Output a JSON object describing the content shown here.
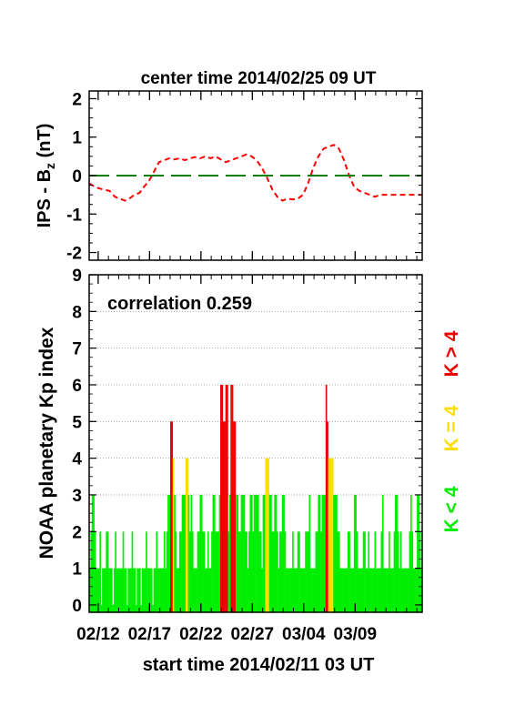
{
  "chart_data": [
    {
      "type": "line",
      "title": "center time 2014/02/25 09 UT",
      "ylabel": "IPS - B",
      "ylabel_sub": "z",
      "ylabel_unit": " (nT)",
      "ylim": [
        -2.2,
        2.2
      ],
      "yticks": [
        2,
        1,
        0,
        -1,
        -2
      ],
      "xrange_days": [
        0,
        32.4
      ],
      "series": [
        {
          "color": "#ff0000",
          "x": [
            0,
            0.6,
            1.2,
            2,
            2.5,
            3,
            3.5,
            3.9,
            4.4,
            4.9,
            5.3,
            5.8,
            6.3,
            6.8,
            7.3,
            7.8,
            8.3,
            8.8,
            9.3,
            9.8,
            10.3,
            10.8,
            11.3,
            11.8,
            12.3,
            12.8,
            13.3,
            13.8,
            14.3,
            14.8,
            15.3,
            15.8,
            16.3,
            16.8,
            17.3,
            17.8,
            18.3,
            18.8,
            19.3,
            19.8,
            20.3,
            20.8,
            21.3,
            21.8,
            22.3,
            22.8,
            23.3,
            23.8,
            24.3,
            24.8,
            25.3,
            25.8,
            26.3,
            26.8,
            27.3,
            27.8,
            28.3,
            28.8,
            29.3,
            29.8,
            30.3,
            30.8,
            31.3,
            31.8,
            32.3
          ],
          "y": [
            -0.2,
            -0.3,
            -0.35,
            -0.4,
            -0.55,
            -0.6,
            -0.65,
            -0.6,
            -0.5,
            -0.45,
            -0.3,
            -0.15,
            0.1,
            0.35,
            0.4,
            0.45,
            0.42,
            0.45,
            0.4,
            0.45,
            0.48,
            0.45,
            0.5,
            0.45,
            0.5,
            0.42,
            0.35,
            0.4,
            0.45,
            0.5,
            0.55,
            0.5,
            0.4,
            0.2,
            -0.05,
            -0.35,
            -0.55,
            -0.65,
            -0.6,
            -0.62,
            -0.6,
            -0.5,
            -0.2,
            0.2,
            0.5,
            0.7,
            0.75,
            0.8,
            0.7,
            0.4,
            0.0,
            -0.3,
            -0.4,
            -0.45,
            -0.5,
            -0.55,
            -0.5,
            -0.5,
            -0.5,
            -0.5,
            -0.5,
            -0.5,
            -0.5,
            -0.5,
            -0.5
          ]
        },
        {
          "color": "#008000",
          "x": [
            0,
            32.4
          ],
          "y": [
            0,
            0
          ]
        }
      ]
    },
    {
      "type": "bar",
      "annotation": "correlation 0.259",
      "ylabel": "NOAA planetary Kp index",
      "xlabel": "start time 2014/02/11 03 UT",
      "ylim": [
        -0.2,
        9
      ],
      "yticks": [
        0,
        1,
        2,
        3,
        4,
        5,
        6,
        7,
        8,
        9
      ],
      "categories": [
        "02/12",
        "02/17",
        "02/22",
        "02/27",
        "03/04",
        "03/09"
      ],
      "category_day_offsets": [
        0.875,
        5.875,
        10.875,
        15.875,
        20.875,
        25.875
      ],
      "xrange_days": [
        0,
        32.4
      ],
      "bar_days_step": 0.125,
      "legend": [
        {
          "label": "K < 4",
          "color": "#00ee00"
        },
        {
          "label": "K = 4",
          "color": "#ffdd00"
        },
        {
          "label": "K > 4",
          "color": "#ee0000"
        }
      ],
      "kp_values": [
        1,
        2,
        3,
        3,
        2,
        1,
        1,
        1,
        2,
        0,
        1,
        1,
        1,
        2,
        2,
        1,
        1,
        1,
        0,
        1,
        2,
        1,
        1,
        1,
        1,
        1,
        2,
        1,
        1,
        0,
        1,
        1,
        1,
        2,
        1,
        1,
        0,
        1,
        1,
        1,
        0,
        1,
        1,
        1,
        2,
        1,
        1,
        1,
        1,
        0,
        1,
        1,
        2,
        1,
        1,
        1,
        1,
        1,
        2,
        1,
        2,
        3,
        3,
        5,
        5,
        4,
        3,
        2,
        1,
        1,
        2,
        2,
        3,
        3,
        3,
        4,
        4,
        3,
        2,
        3,
        2,
        1,
        1,
        1,
        2,
        2,
        3,
        3,
        2,
        2,
        1,
        1,
        2,
        1,
        1,
        2,
        3,
        3,
        2,
        2,
        2,
        3,
        6,
        6,
        5,
        5,
        6,
        6,
        2,
        3,
        6,
        6,
        5,
        5,
        3,
        3,
        2,
        2,
        3,
        3,
        3,
        2,
        2,
        1,
        2,
        3,
        3,
        2,
        3,
        3,
        3,
        3,
        2,
        2,
        1,
        3,
        3,
        4,
        4,
        4,
        3,
        3,
        2,
        2,
        3,
        3,
        2,
        1,
        2,
        2,
        3,
        3,
        2,
        1,
        1,
        1,
        1,
        1,
        2,
        1,
        1,
        1,
        2,
        2,
        1,
        1,
        1,
        1,
        2,
        2,
        2,
        3,
        1,
        1,
        1,
        1,
        2,
        2,
        3,
        3,
        2,
        3,
        3,
        3,
        6,
        5,
        4,
        4,
        4,
        4,
        3,
        3,
        3,
        2,
        2,
        1,
        1,
        1,
        1,
        1,
        1,
        2,
        2,
        1,
        1,
        1,
        3,
        3,
        2,
        1,
        1,
        1,
        1,
        2,
        2,
        1,
        1,
        2,
        1,
        1,
        1,
        1,
        2,
        1,
        1,
        1,
        1,
        2,
        3,
        1,
        1,
        1,
        1,
        2,
        1,
        1,
        1,
        2,
        3,
        3,
        2,
        1,
        2,
        1,
        1,
        1,
        1,
        1,
        1,
        2,
        3,
        2,
        1,
        1,
        1,
        3,
        3,
        2,
        1,
        2,
        1,
        1,
        1,
        2,
        1,
        1,
        1,
        2,
        1,
        1,
        1,
        1,
        1,
        1,
        1,
        1,
        1,
        1,
        1,
        1,
        1,
        1,
        1,
        1,
        1,
        1,
        1,
        1,
        2,
        1,
        1,
        1,
        3,
        3,
        2,
        1,
        1,
        1,
        1,
        1,
        1,
        1,
        1,
        0,
        1,
        1,
        2,
        2,
        1,
        1
      ]
    }
  ]
}
